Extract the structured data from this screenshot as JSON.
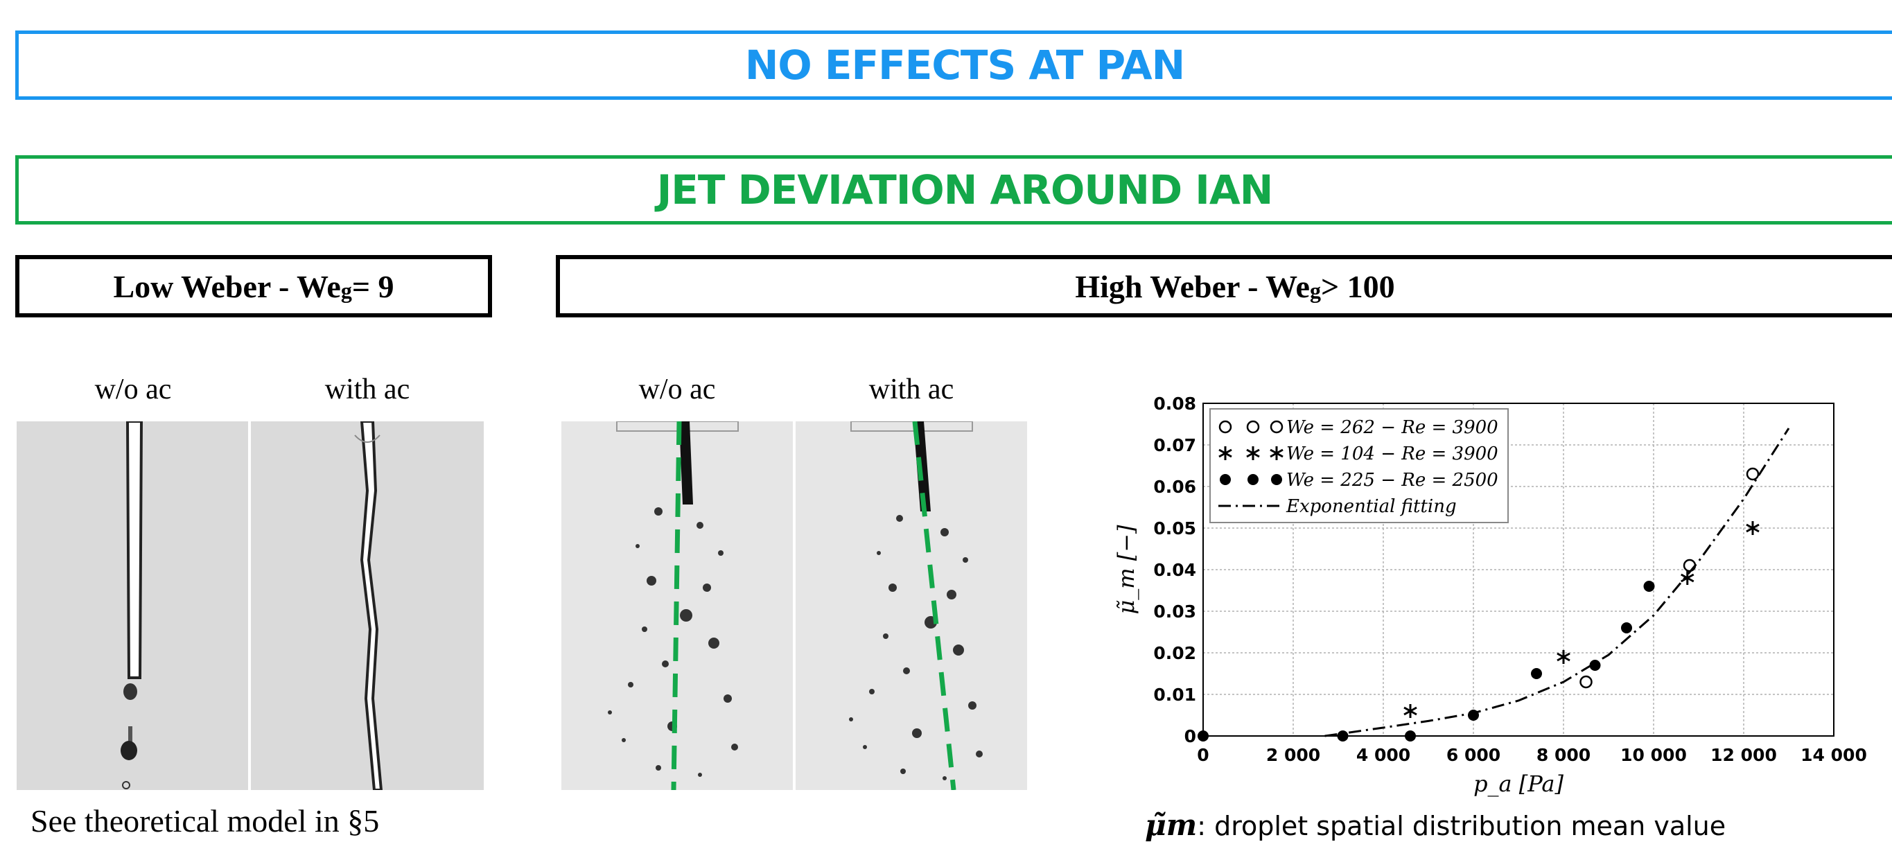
{
  "banners": {
    "pan": "NO EFFECTS AT PAN",
    "ian": "JET DEVIATION AROUND IAN"
  },
  "regimes": {
    "low": {
      "prefix": "Low Weber - We",
      "sub": "g",
      "suffix": " = 9"
    },
    "high": {
      "prefix": "High Weber - We",
      "sub": "g",
      "suffix": " > 100"
    }
  },
  "captions": {
    "low_without": "w/o ac",
    "low_with": "with ac",
    "high_without": "w/o ac",
    "high_with": "with ac"
  },
  "note": "See theoretical model in §5",
  "definition": {
    "symbol": "μ̃m",
    "text": ": droplet spatial distribution mean value"
  },
  "colors": {
    "blue": "#1a96f0",
    "green": "#14a84a",
    "deviation_line": "#14a84a"
  },
  "chart_data": {
    "type": "scatter",
    "xlabel": "p_a [Pa]",
    "ylabel": "μ̃_m [−]",
    "xlim": [
      0,
      14000
    ],
    "ylim": [
      0,
      0.08
    ],
    "x_ticks": [
      0,
      2000,
      4000,
      6000,
      8000,
      10000,
      12000,
      14000
    ],
    "x_tick_labels": [
      "0",
      "2 000",
      "4 000",
      "6 000",
      "8 000",
      "10 000",
      "12 000",
      "14 000"
    ],
    "y_ticks": [
      0,
      0.01,
      0.02,
      0.03,
      0.04,
      0.05,
      0.06,
      0.07,
      0.08
    ],
    "y_tick_labels": [
      "0",
      "0.01",
      "0.02",
      "0.03",
      "0.04",
      "0.05",
      "0.06",
      "0.07",
      "0.08"
    ],
    "grid": true,
    "legend_position": "top-left",
    "series": [
      {
        "name": "We = 262 − Re = 3900",
        "marker": "open-circle",
        "points": [
          [
            8500,
            0.013
          ],
          [
            10800,
            0.041
          ],
          [
            12200,
            0.063
          ]
        ]
      },
      {
        "name": "We = 104 − Re = 3900",
        "marker": "asterisk",
        "points": [
          [
            4600,
            0.006
          ],
          [
            8000,
            0.019
          ],
          [
            10750,
            0.038
          ],
          [
            12200,
            0.05
          ]
        ]
      },
      {
        "name": "We = 225 − Re = 2500",
        "marker": "filled-circle",
        "points": [
          [
            0,
            0.0
          ],
          [
            3100,
            0.0
          ],
          [
            4600,
            0.0
          ],
          [
            6000,
            0.005
          ],
          [
            7400,
            0.015
          ],
          [
            8700,
            0.017
          ],
          [
            9400,
            0.026
          ],
          [
            9900,
            0.036
          ]
        ]
      },
      {
        "name": "Exponential fitting",
        "marker": "dash-dot-line",
        "curve": [
          [
            2700,
            0.0
          ],
          [
            4000,
            0.002
          ],
          [
            5000,
            0.0036
          ],
          [
            6000,
            0.0055
          ],
          [
            7000,
            0.0085
          ],
          [
            8000,
            0.013
          ],
          [
            9000,
            0.0195
          ],
          [
            10000,
            0.029
          ],
          [
            11000,
            0.042
          ],
          [
            12000,
            0.057
          ],
          [
            13000,
            0.074
          ]
        ]
      }
    ]
  }
}
